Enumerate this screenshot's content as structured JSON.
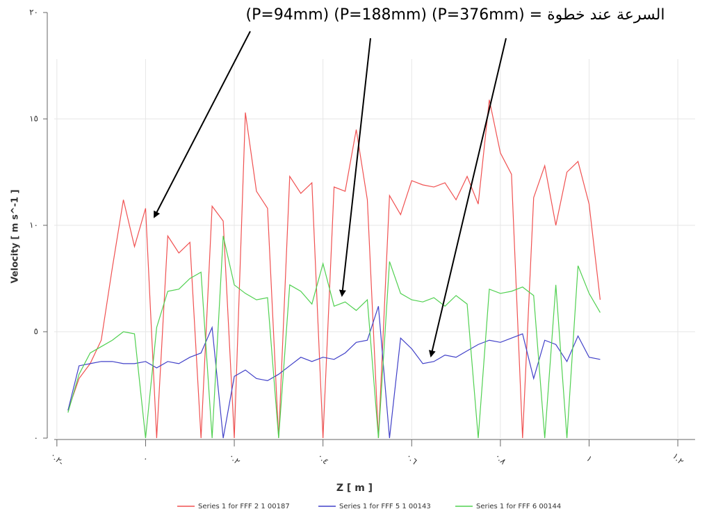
{
  "chart_data": {
    "type": "line",
    "annotation": "(P=94mm) (P=188mm) (P=376mm) = السرعة عند خطوة",
    "x_label": "Z [ m ]",
    "y_label": "Velocity [ m s^-1 ]",
    "x": [
      -0.175,
      -0.15,
      -0.125,
      -0.1,
      -0.075,
      -0.05,
      -0.025,
      0,
      0.025,
      0.05,
      0.075,
      0.1,
      0.125,
      0.15,
      0.175,
      0.2,
      0.225,
      0.25,
      0.275,
      0.3,
      0.325,
      0.35,
      0.375,
      0.4,
      0.425,
      0.45,
      0.475,
      0.5,
      0.525,
      0.55,
      0.575,
      0.6,
      0.625,
      0.65,
      0.675,
      0.7,
      0.725,
      0.75,
      0.775,
      0.8,
      0.825,
      0.85,
      0.875,
      0.9,
      0.925,
      0.95,
      0.975,
      1.0,
      1.025
    ],
    "series": [
      {
        "name": "Series 1 for FFF 2 1 00187",
        "color": "#f05050",
        "values": [
          1.3,
          2.8,
          3.5,
          4.6,
          8.0,
          11.2,
          9.0,
          10.8,
          0,
          9.5,
          8.7,
          9.2,
          0,
          10.9,
          10.2,
          0,
          15.3,
          11.6,
          10.8,
          0,
          12.3,
          11.5,
          12.0,
          0,
          11.8,
          11.6,
          14.5,
          11.2,
          0,
          11.4,
          10.5,
          12.1,
          11.9,
          11.8,
          12.0,
          11.2,
          12.3,
          11.0,
          15.9,
          13.4,
          12.4,
          0,
          11.3,
          12.8,
          10.0,
          12.5,
          13.0,
          11.0,
          6.5
        ]
      },
      {
        "name": "Series 1 for FFF 5 1 00143",
        "color": "#4040c8",
        "values": [
          1.3,
          3.4,
          3.5,
          3.6,
          3.6,
          3.5,
          3.5,
          3.6,
          3.3,
          3.6,
          3.5,
          3.8,
          4.0,
          5.2,
          0,
          2.9,
          3.2,
          2.8,
          2.7,
          3.0,
          3.4,
          3.8,
          3.6,
          3.8,
          3.7,
          4.0,
          4.5,
          4.6,
          6.2,
          0,
          4.7,
          4.2,
          3.5,
          3.6,
          3.9,
          3.8,
          4.1,
          4.4,
          4.6,
          4.5,
          4.7,
          4.9,
          2.8,
          4.6,
          4.4,
          3.6,
          4.8,
          3.8,
          3.7
        ]
      },
      {
        "name": "Series 1 for FFF 6 00144",
        "color": "#50d050",
        "values": [
          1.2,
          3.0,
          4.0,
          4.3,
          4.6,
          5.0,
          4.9,
          0,
          5.2,
          6.9,
          7.0,
          7.5,
          7.8,
          0,
          9.5,
          7.2,
          6.8,
          6.5,
          6.6,
          0,
          7.2,
          6.9,
          6.3,
          8.2,
          6.2,
          6.4,
          6.0,
          6.5,
          0,
          8.3,
          6.8,
          6.5,
          6.4,
          6.6,
          6.2,
          6.7,
          6.3,
          0,
          7.0,
          6.8,
          6.9,
          7.1,
          6.7,
          0,
          7.2,
          0,
          8.1,
          6.8,
          5.9
        ]
      }
    ],
    "xlim": [
      -0.206,
      1.239
    ],
    "ylim": [
      0,
      20
    ],
    "xticks": [
      {
        "value": -0.2,
        "label": "٠.٢-"
      },
      {
        "value": 0,
        "label": "٠"
      },
      {
        "value": 0.2,
        "label": "٠.٢"
      },
      {
        "value": 0.4,
        "label": "٠.٤"
      },
      {
        "value": 0.6,
        "label": "٠.٦"
      },
      {
        "value": 0.8,
        "label": "٠.٨"
      },
      {
        "value": 1,
        "label": "١"
      },
      {
        "value": 1.2,
        "label": "١.٢"
      }
    ],
    "yticks": [
      {
        "value": 0,
        "label": "٠"
      },
      {
        "value": 5,
        "label": "٥"
      },
      {
        "value": 10,
        "label": "١٠"
      },
      {
        "value": 15,
        "label": "١٥"
      },
      {
        "value": 20,
        "label": "٢٠"
      }
    ],
    "grid": true
  }
}
